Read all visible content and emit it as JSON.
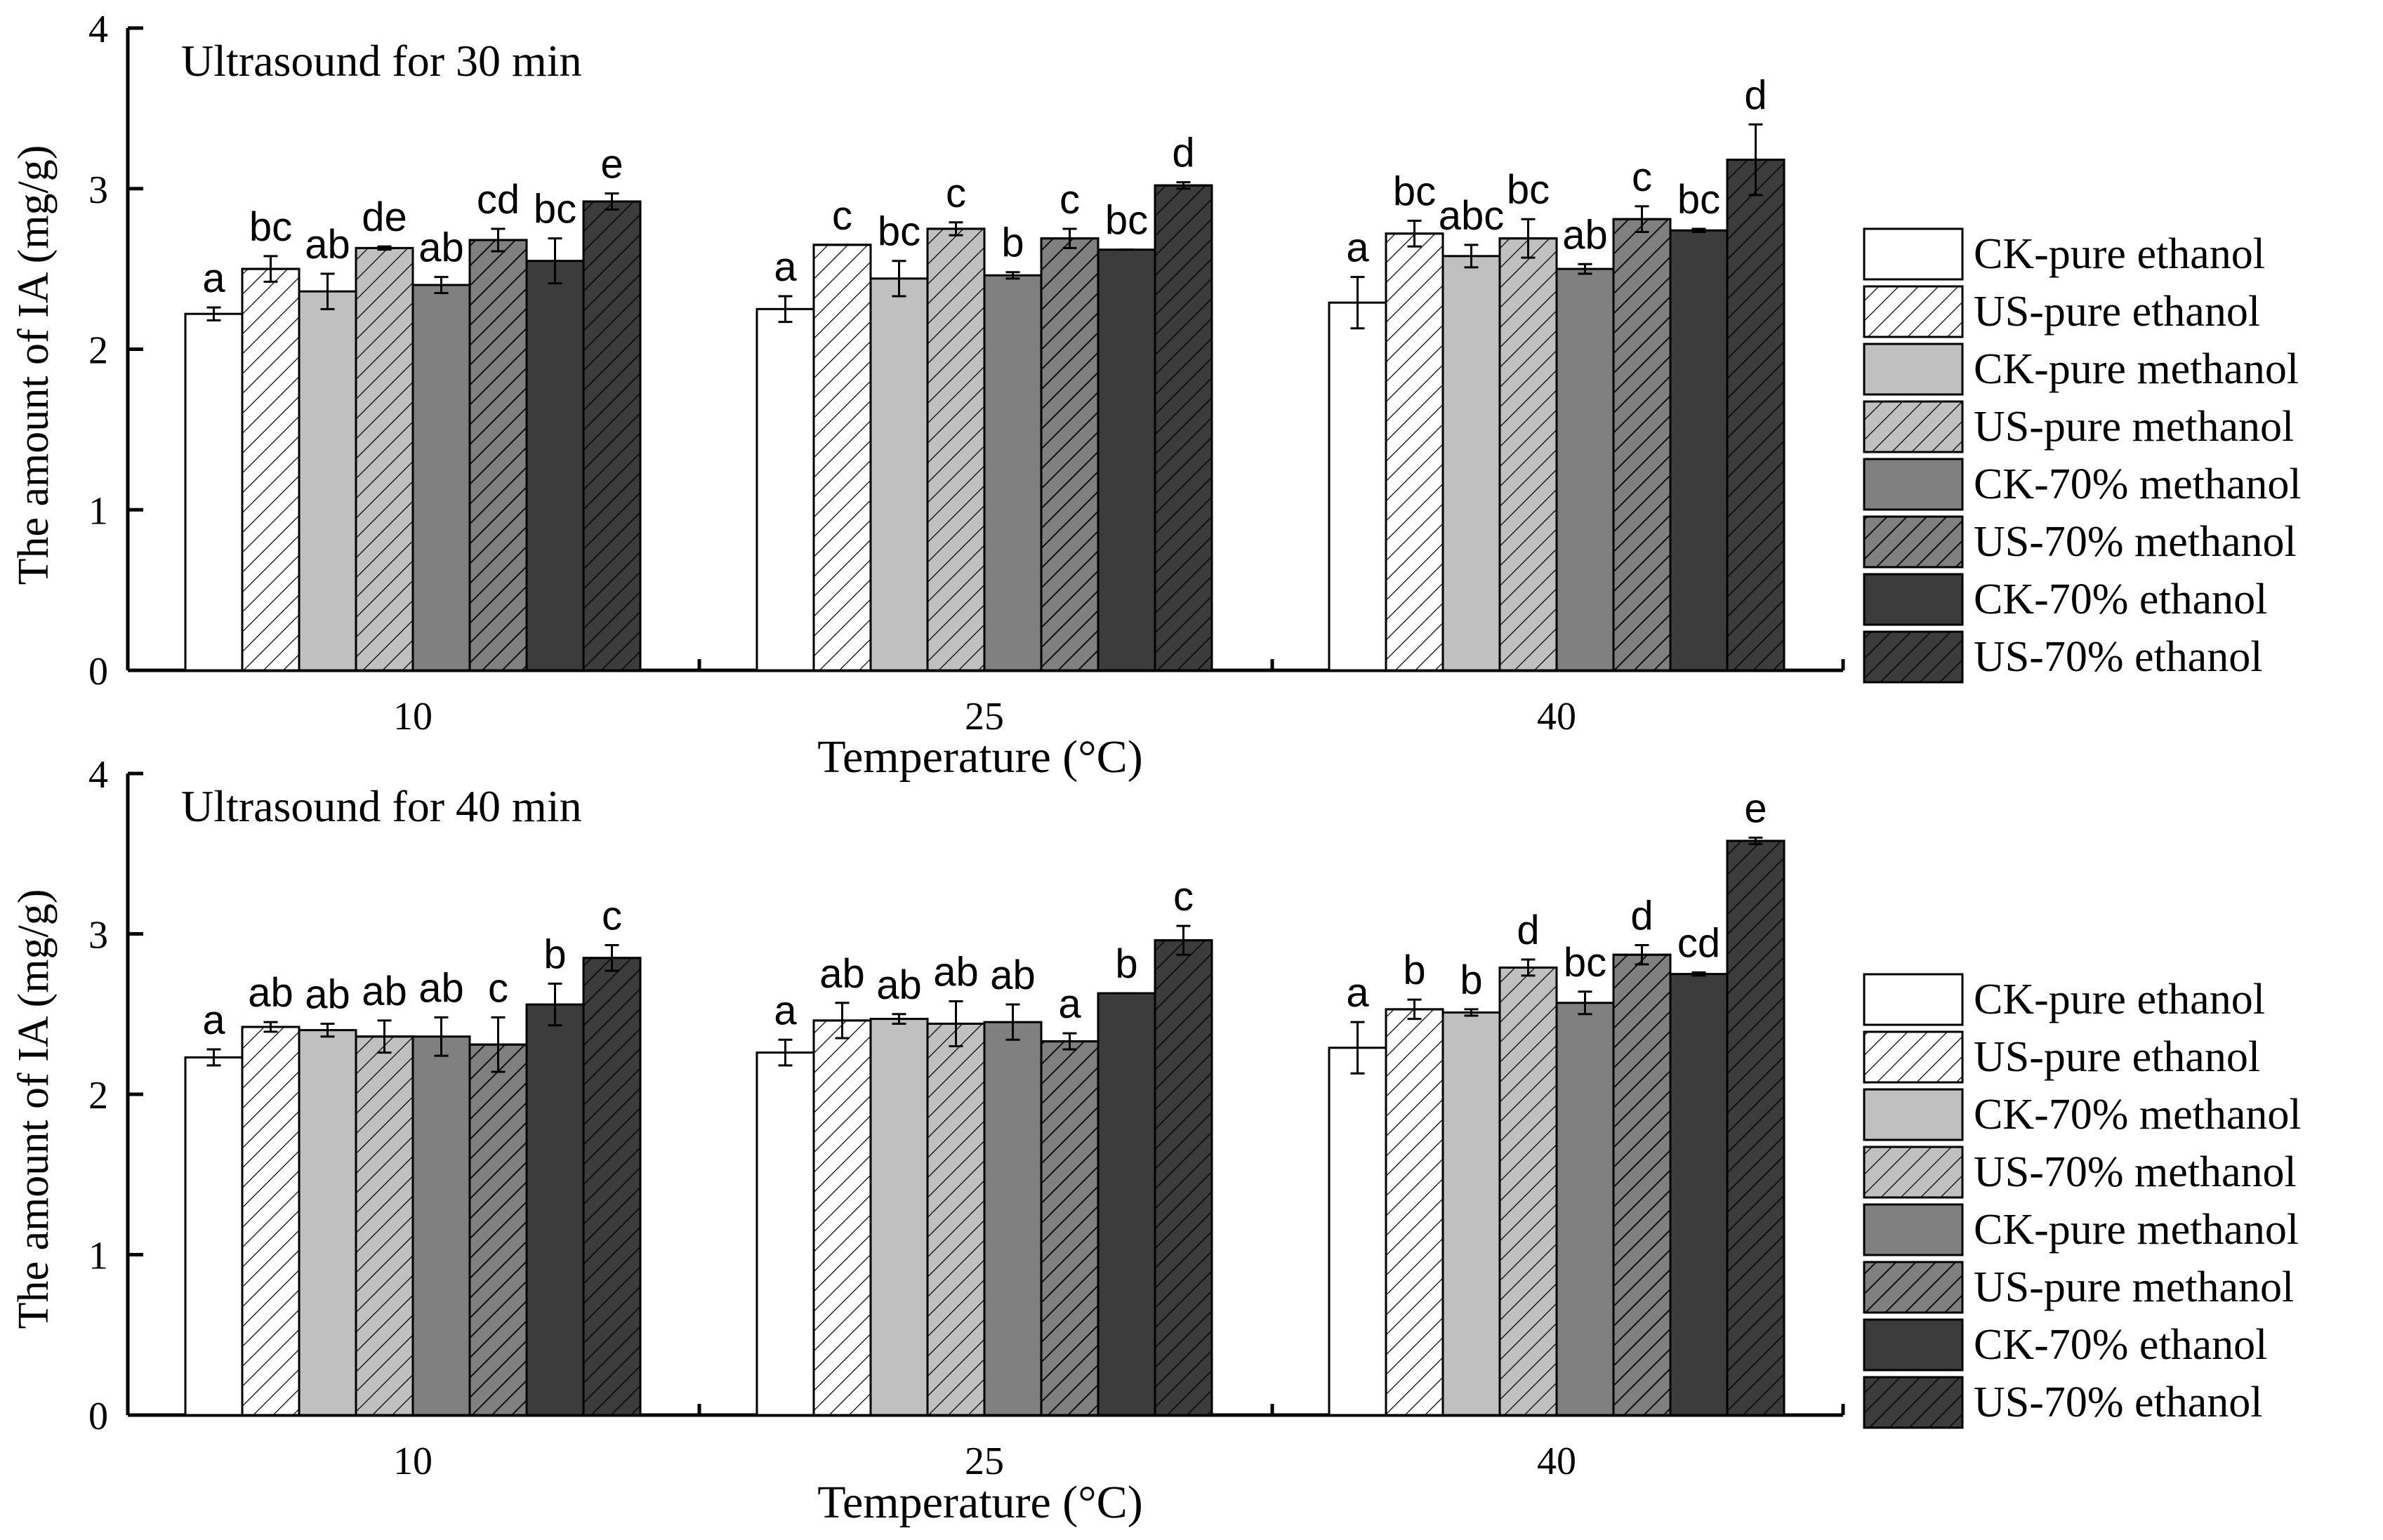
{
  "chart_data": [
    {
      "type": "bar",
      "title": "Ultrasound for 30 min",
      "xlabel": "Temperature (°C)",
      "ylabel": "The amount of IA (mg/g)",
      "ylim": [
        0,
        4
      ],
      "yticks": [
        "0",
        "1",
        "2",
        "3",
        "4"
      ],
      "categories": [
        "10",
        "25",
        "40"
      ],
      "grid": false,
      "legend_position": "right",
      "series": [
        {
          "name": "CK-pure ethanol",
          "fill": "#ffffff",
          "hatch": false,
          "values": [
            2.22,
            2.25,
            2.29
          ],
          "errors": [
            0.04,
            0.08,
            0.16
          ],
          "labels": [
            "a",
            "a",
            "a"
          ]
        },
        {
          "name": "US-pure ethanol",
          "fill": "#ffffff",
          "hatch": true,
          "values": [
            2.5,
            2.65,
            2.72
          ],
          "errors": [
            0.08,
            0.0,
            0.08
          ],
          "labels": [
            "bc",
            "c",
            "bc"
          ]
        },
        {
          "name": "CK-pure methanol",
          "fill": "#c0c0c0",
          "hatch": false,
          "values": [
            2.36,
            2.44,
            2.58
          ],
          "errors": [
            0.11,
            0.11,
            0.07
          ],
          "labels": [
            "ab",
            "bc",
            "abc"
          ]
        },
        {
          "name": "US-pure methanol",
          "fill": "#c0c0c0",
          "hatch": true,
          "values": [
            2.63,
            2.75,
            2.69
          ],
          "errors": [
            0.01,
            0.04,
            0.12
          ],
          "labels": [
            "de",
            "c",
            "bc"
          ]
        },
        {
          "name": "CK-70% methanol",
          "fill": "#808080",
          "hatch": false,
          "values": [
            2.4,
            2.46,
            2.5
          ],
          "errors": [
            0.05,
            0.02,
            0.03
          ],
          "labels": [
            "ab",
            "b",
            "ab"
          ]
        },
        {
          "name": "US-70% methanol",
          "fill": "#808080",
          "hatch": true,
          "values": [
            2.68,
            2.69,
            2.81
          ],
          "errors": [
            0.07,
            0.06,
            0.08
          ],
          "labels": [
            "cd",
            "c",
            "c"
          ]
        },
        {
          "name": "CK-70% ethanol",
          "fill": "#3c3c3c",
          "hatch": false,
          "values": [
            2.55,
            2.62,
            2.74
          ],
          "errors": [
            0.14,
            0.0,
            0.01
          ],
          "labels": [
            "bc",
            "bc",
            "bc"
          ]
        },
        {
          "name": "US-70% ethanol",
          "fill": "#3c3c3c",
          "hatch": true,
          "values": [
            2.92,
            3.02,
            3.18
          ],
          "errors": [
            0.05,
            0.02,
            0.22
          ],
          "labels": [
            "e",
            "d",
            "d"
          ]
        }
      ]
    },
    {
      "type": "bar",
      "title": "Ultrasound for 40 min",
      "xlabel": "Temperature (°C)",
      "ylabel": "The amount of IA (mg/g)",
      "ylim": [
        0,
        4
      ],
      "yticks": [
        "0",
        "1",
        "2",
        "3",
        "4"
      ],
      "categories": [
        "10",
        "25",
        "40"
      ],
      "grid": false,
      "legend_position": "right",
      "series": [
        {
          "name": "CK-pure ethanol",
          "fill": "#ffffff",
          "hatch": false,
          "values": [
            2.23,
            2.26,
            2.29
          ],
          "errors": [
            0.05,
            0.08,
            0.16
          ],
          "labels": [
            "a",
            "a",
            "a"
          ]
        },
        {
          "name": "US-pure ethanol",
          "fill": "#ffffff",
          "hatch": true,
          "values": [
            2.42,
            2.46,
            2.53
          ],
          "errors": [
            0.03,
            0.11,
            0.06
          ],
          "labels": [
            "ab",
            "ab",
            "b"
          ]
        },
        {
          "name": "CK-70% methanol",
          "fill": "#c0c0c0",
          "hatch": false,
          "values": [
            2.4,
            2.47,
            2.51
          ],
          "errors": [
            0.04,
            0.03,
            0.02
          ],
          "labels": [
            "ab",
            "ab",
            "b"
          ]
        },
        {
          "name": "US-70% methanol",
          "fill": "#c0c0c0",
          "hatch": true,
          "values": [
            2.36,
            2.44,
            2.79
          ],
          "errors": [
            0.1,
            0.14,
            0.05
          ],
          "labels": [
            "ab",
            "ab",
            "d"
          ]
        },
        {
          "name": "CK-pure methanol",
          "fill": "#808080",
          "hatch": false,
          "values": [
            2.36,
            2.45,
            2.57
          ],
          "errors": [
            0.12,
            0.11,
            0.07
          ],
          "labels": [
            "ab",
            "ab",
            "bc"
          ]
        },
        {
          "name": "US-pure methanol",
          "fill": "#808080",
          "hatch": true,
          "values": [
            2.31,
            2.33,
            2.87
          ],
          "errors": [
            0.17,
            0.05,
            0.06
          ],
          "labels": [
            "c",
            "a",
            "d"
          ]
        },
        {
          "name": "CK-70% ethanol",
          "fill": "#3c3c3c",
          "hatch": false,
          "values": [
            2.56,
            2.63,
            2.75
          ],
          "errors": [
            0.13,
            0.0,
            0.01
          ],
          "labels": [
            "b",
            "b",
            "cd"
          ]
        },
        {
          "name": "US-70% ethanol",
          "fill": "#3c3c3c",
          "hatch": true,
          "values": [
            2.85,
            2.96,
            3.58
          ],
          "errors": [
            0.08,
            0.09,
            0.02
          ],
          "labels": [
            "c",
            "c",
            "e"
          ]
        }
      ]
    }
  ]
}
